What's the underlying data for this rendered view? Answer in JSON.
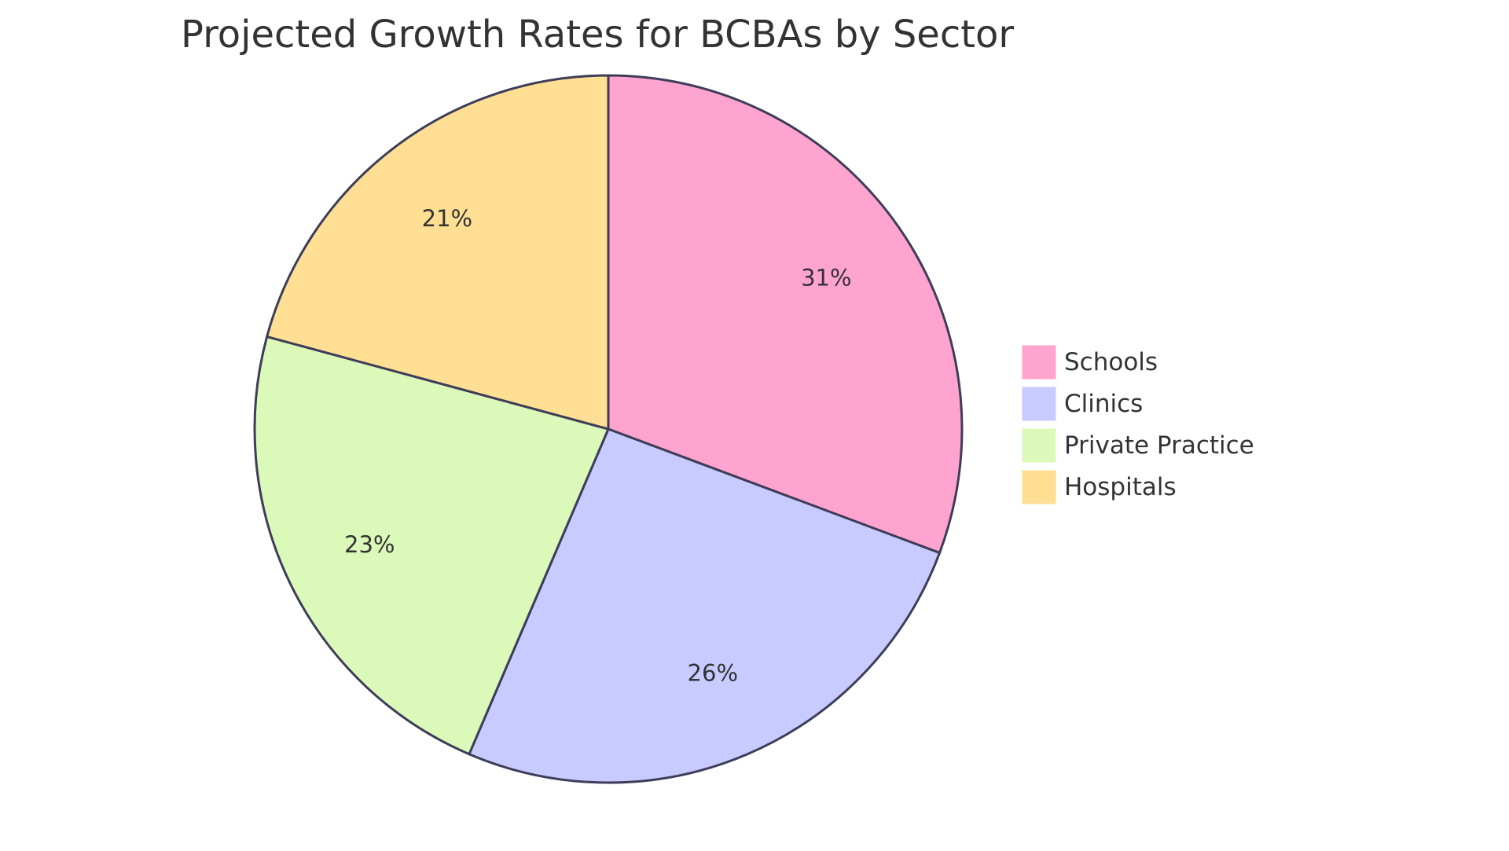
{
  "chart_data": {
    "type": "pie",
    "title": "Projected Growth Rates for BCBAs by Sector",
    "slices": [
      {
        "name": "Schools",
        "value": 31,
        "label": "31%",
        "color": "#FFA3CF"
      },
      {
        "name": "Clinics",
        "value": 26,
        "label": "26%",
        "color": "#C8CBFF"
      },
      {
        "name": "Private Practice",
        "value": 23,
        "label": "23%",
        "color": "#DBF9B9"
      },
      {
        "name": "Hospitals",
        "value": 21,
        "label": "21%",
        "color": "#FEDF94"
      }
    ],
    "legend_position": "right",
    "stroke_color": "#3E3D59"
  }
}
